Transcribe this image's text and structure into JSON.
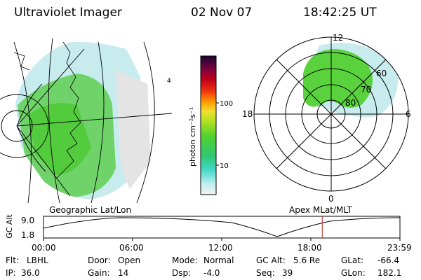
{
  "header": {
    "instrument": "Ultraviolet Imager",
    "date": "02 Nov 07",
    "time": "18:42:25 UT"
  },
  "colorbar": {
    "unit_label": "photon cm⁻²s⁻¹",
    "ticks": [
      "100",
      "10"
    ]
  },
  "geo_panel": {
    "caption": "Geographic Lat/Lon"
  },
  "polar_panel": {
    "caption": "Apex  MLat/MLT",
    "mlt_labels": {
      "top": "12",
      "left": "18",
      "right": "6",
      "bottom": "0"
    },
    "mlat_labels": [
      "60",
      "70",
      "80"
    ]
  },
  "altitude_plot": {
    "axis_label": "GC Alt",
    "y_ticks": [
      "9.0",
      "1.8"
    ],
    "x_ticks": [
      "00:00",
      "06:00",
      "12:00",
      "18:00",
      "23:59"
    ],
    "current_time_fraction": 0.782,
    "accent_color": "#b22222"
  },
  "info": {
    "flt_label": "Flt:",
    "flt_value": "LBHL",
    "door_label": "Door:",
    "door_value": "Open",
    "mode_label": "Mode:",
    "mode_value": "Normal",
    "gcalt_label": "GC Alt:",
    "gcalt_value": "5.6 Re",
    "glat_label": "GLat:",
    "glat_value": "-66.4",
    "ip_label": "IP:",
    "ip_value": "36.0",
    "gain_label": "Gain:",
    "gain_value": "14",
    "dsp_label": "Dsp:",
    "dsp_value": "-4.0",
    "seq_label": "Seq:",
    "seq_value": "39",
    "glon_label": "GLon:",
    "glon_value": "182.1"
  }
}
